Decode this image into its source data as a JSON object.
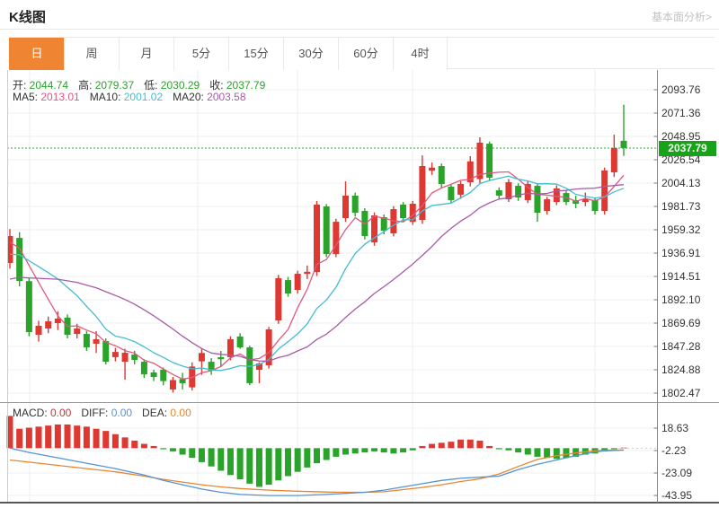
{
  "header": {
    "title": "K线图",
    "link": "基本面分析>"
  },
  "tabs": {
    "items": [
      {
        "key": "day",
        "label": "日",
        "active": true
      },
      {
        "key": "week",
        "label": "周",
        "active": false
      },
      {
        "key": "month",
        "label": "月",
        "active": false
      },
      {
        "key": "5min",
        "label": "5分",
        "active": false
      },
      {
        "key": "15min",
        "label": "15分",
        "active": false
      },
      {
        "key": "30min",
        "label": "30分",
        "active": false
      },
      {
        "key": "60min",
        "label": "60分",
        "active": false
      },
      {
        "key": "4hour",
        "label": "4时",
        "active": false
      }
    ]
  },
  "info_row": [
    {
      "key": "open",
      "label": "开:",
      "value": "2044.74",
      "color": "#2ba12b"
    },
    {
      "key": "high",
      "label": "高:",
      "value": "2079.37",
      "color": "#2ba12b"
    },
    {
      "key": "low",
      "label": "低:",
      "value": "2030.29",
      "color": "#2ba12b"
    },
    {
      "key": "close",
      "label": "收:",
      "value": "2037.79",
      "color": "#2ba12b"
    }
  ],
  "ma_row": [
    {
      "key": "ma5",
      "label": "MA5:",
      "value": "2013.01",
      "color": "#e0587e"
    },
    {
      "key": "ma10",
      "label": "MA10:",
      "value": "2001.02",
      "color": "#44bcd2"
    },
    {
      "key": "ma20",
      "label": "MA20:",
      "value": "2003.58",
      "color": "#a75ba7"
    }
  ],
  "macd_row": [
    {
      "key": "macd",
      "label": "MACD:",
      "value": "0.00",
      "color": "#cc3232"
    },
    {
      "key": "diff",
      "label": "DIFF:",
      "value": "0.00",
      "color": "#5593d6"
    },
    {
      "key": "dea",
      "label": "DEA:",
      "value": "0.00",
      "color": "#e8852e"
    }
  ],
  "price_tag": "2037.79",
  "colors": {
    "up": "#dd3832",
    "down": "#2aa32b",
    "tag_bg": "#17a317",
    "dotted_line": "#2fa52f",
    "ma5": "#e0587e",
    "ma10": "#44bcd2",
    "ma20": "#a75ba7",
    "diff": "#5593d6",
    "dea": "#e8852e",
    "grid": "#efefef",
    "axis": "#888888",
    "label": "#333333",
    "active_tab": "#ef8532"
  },
  "chart_data": {
    "type": "candlestick+macd",
    "main": {
      "y_axis_labels": [
        "2093.76",
        "2071.36",
        "2048.95",
        "2026.54",
        "2004.13",
        "1981.73",
        "1959.32",
        "1936.91",
        "1914.51",
        "1892.10",
        "1869.69",
        "1847.28",
        "1824.88",
        "1802.47"
      ],
      "ylim": [
        1802.47,
        2093.76
      ],
      "current_price": 2037.79,
      "ma_windows": [
        5,
        10,
        20
      ],
      "ma_seed": [
        1880,
        1876,
        1872,
        1875,
        1879,
        1884,
        1889,
        1894,
        1899,
        1904,
        1909,
        1914,
        1919,
        1924,
        1929,
        1934,
        1939,
        1944,
        1949,
        1952
      ],
      "candles": [
        [
          1927.4,
          1960.0,
          1922.0,
          1953.3
        ],
        [
          1951.5,
          1957.0,
          1905.0,
          1910.2
        ],
        [
          1910.0,
          1913.0,
          1857.0,
          1861.0
        ],
        [
          1858.5,
          1872.0,
          1852.0,
          1867.1
        ],
        [
          1864.5,
          1876.0,
          1860.0,
          1871.4
        ],
        [
          1869.7,
          1881.0,
          1863.0,
          1874.0
        ],
        [
          1875.0,
          1878.0,
          1855.0,
          1858.5
        ],
        [
          1859.3,
          1869.0,
          1855.0,
          1864.5
        ],
        [
          1859.3,
          1862.0,
          1843.0,
          1846.4
        ],
        [
          1849.9,
          1862.0,
          1841.0,
          1854.2
        ],
        [
          1852.4,
          1855.0,
          1830.0,
          1832.6
        ],
        [
          1837.0,
          1846.0,
          1833.0,
          1842.0
        ],
        [
          1832.6,
          1845.0,
          1815.4,
          1841.2
        ],
        [
          1839.5,
          1843.0,
          1830.0,
          1834.3
        ],
        [
          1832.6,
          1835.0,
          1817.0,
          1820.5
        ],
        [
          1822.3,
          1825.0,
          1814.0,
          1818.0
        ],
        [
          1825.0,
          1827.0,
          1810.0,
          1814.0
        ],
        [
          1806.0,
          1818.0,
          1803.0,
          1815.0
        ],
        [
          1816.0,
          1822.0,
          1806.0,
          1812.0
        ],
        [
          1808.0,
          1832.0,
          1805.0,
          1828.0
        ],
        [
          1833.0,
          1845.0,
          1820.0,
          1841.0
        ],
        [
          1832.6,
          1836.0,
          1820.0,
          1824.0
        ],
        [
          1837.0,
          1843.0,
          1828.0,
          1835.0
        ],
        [
          1837.0,
          1857.0,
          1834.0,
          1854.2
        ],
        [
          1856.8,
          1860.0,
          1845.0,
          1846.4
        ],
        [
          1846.4,
          1848.0,
          1810.0,
          1812.0
        ],
        [
          1824.9,
          1832.0,
          1812.0,
          1830.9
        ],
        [
          1829.2,
          1866.0,
          1826.0,
          1863.7
        ],
        [
          1872.3,
          1916.0,
          1869.0,
          1912.8
        ],
        [
          1911.0,
          1914.0,
          1895.0,
          1898.1
        ],
        [
          1901.6,
          1920.0,
          1898.0,
          1917.1
        ],
        [
          1917.0,
          1925.0,
          1912.0,
          1919.0
        ],
        [
          1918.8,
          1987.0,
          1915.0,
          1983.5
        ],
        [
          1981.7,
          1984.0,
          1933.0,
          1936.0
        ],
        [
          1936.0,
          1970.0,
          1933.0,
          1967.0
        ],
        [
          1970.5,
          2005.8,
          1967.0,
          1992.1
        ],
        [
          1992.1,
          1995.0,
          1972.0,
          1975.7
        ],
        [
          1977.4,
          1980.0,
          1950.0,
          1953.3
        ],
        [
          1947.2,
          1976.0,
          1944.0,
          1973.1
        ],
        [
          1971.4,
          1974.0,
          1955.0,
          1958.4
        ],
        [
          1955.9,
          1982.0,
          1953.0,
          1979.1
        ],
        [
          1983.5,
          1986.0,
          1967.0,
          1970.5
        ],
        [
          1966.9,
          1987.0,
          1964.0,
          1984.3
        ],
        [
          1968.8,
          2030.8,
          1965.0,
          2020.5
        ],
        [
          2016.0,
          2024.0,
          2012.0,
          2019.0
        ],
        [
          2020.5,
          2023.0,
          2000.0,
          2003.3
        ],
        [
          2000.7,
          2003.0,
          1985.0,
          1987.8
        ],
        [
          1993.0,
          2006.0,
          1989.0,
          2003.3
        ],
        [
          2005.0,
          2030.0,
          2001.0,
          2025.0
        ],
        [
          2008.0,
          2048.1,
          2004.0,
          2043.0
        ],
        [
          2042.0,
          2044.0,
          2006.0,
          2009.3
        ],
        [
          1997.2,
          2000.0,
          1989.0,
          1992.1
        ],
        [
          1988.6,
          2008.0,
          1986.0,
          2005.0
        ],
        [
          2001.5,
          2004.0,
          1987.0,
          1990.3
        ],
        [
          1987.8,
          2006.0,
          1985.0,
          2003.3
        ],
        [
          2001.5,
          2004.0,
          1967.0,
          1975.7
        ],
        [
          1977.4,
          1991.0,
          1974.0,
          1988.6
        ],
        [
          1986.0,
          2002.0,
          1983.0,
          1999.0
        ],
        [
          1994.6,
          1997.0,
          1983.0,
          1986.0
        ],
        [
          1987.8,
          1992.0,
          1980.0,
          1984.3
        ],
        [
          1986.0,
          1995.0,
          1982.0,
          1989.0
        ],
        [
          1987.8,
          1990.0,
          1974.0,
          1977.4
        ],
        [
          1977.4,
          2019.0,
          1974.0,
          2016.2
        ],
        [
          2014.5,
          2050.7,
          2010.0,
          2037.7
        ],
        [
          2044.74,
          2079.37,
          2030.29,
          2037.79
        ]
      ]
    },
    "macd": {
      "y_axis_labels": [
        "18.63",
        "-2.23",
        "-23.09",
        "-43.95"
      ],
      "ylim": [
        -43.95,
        18.63
      ],
      "bars": [
        30,
        18,
        19,
        20,
        21,
        22,
        22,
        21,
        20,
        18,
        16,
        13,
        10,
        7,
        4,
        2,
        -1,
        -3,
        -6,
        -9,
        -13,
        -17,
        -21,
        -25,
        -29,
        -33,
        -36,
        -34,
        -30,
        -26,
        -22,
        -18,
        -14,
        -11,
        -8,
        -6,
        -5,
        -4,
        -3,
        -4,
        -5,
        -4,
        -2,
        2,
        4,
        5,
        6,
        8,
        8,
        7,
        2,
        -1,
        -2,
        -4,
        -6,
        -8,
        -9,
        -10,
        -9,
        -8,
        -6,
        -5,
        -3,
        -1,
        0.5
      ],
      "diff_points": [
        [
          1,
          0
        ],
        [
          3,
          -4
        ],
        [
          6,
          -9
        ],
        [
          9,
          -14
        ],
        [
          12,
          -19
        ],
        [
          15,
          -25
        ],
        [
          17,
          -30
        ],
        [
          19,
          -34
        ],
        [
          21,
          -38
        ],
        [
          23,
          -41
        ],
        [
          25,
          -43
        ],
        [
          28,
          -44
        ],
        [
          31,
          -44
        ],
        [
          34,
          -43
        ],
        [
          36,
          -42
        ],
        [
          38,
          -41
        ],
        [
          40,
          -39
        ],
        [
          42,
          -36
        ],
        [
          44,
          -33
        ],
        [
          46,
          -30
        ],
        [
          48,
          -28
        ],
        [
          50,
          -27
        ],
        [
          52,
          -26
        ],
        [
          54,
          -20
        ],
        [
          56,
          -15
        ],
        [
          58,
          -11
        ],
        [
          60,
          -7
        ],
        [
          62,
          -3.5
        ],
        [
          63,
          -2.5
        ],
        [
          65,
          -1.8
        ]
      ],
      "dea_points": [
        [
          1,
          -11
        ],
        [
          3,
          -13
        ],
        [
          6,
          -16
        ],
        [
          9,
          -19
        ],
        [
          12,
          -22
        ],
        [
          15,
          -26
        ],
        [
          17,
          -29
        ],
        [
          19,
          -31.5
        ],
        [
          21,
          -34
        ],
        [
          23,
          -36
        ],
        [
          25,
          -37.5
        ],
        [
          28,
          -39
        ],
        [
          31,
          -40
        ],
        [
          34,
          -40.8
        ],
        [
          36,
          -41
        ],
        [
          38,
          -41
        ],
        [
          40,
          -40.5
        ],
        [
          42,
          -38.5
        ],
        [
          44,
          -36.5
        ],
        [
          46,
          -34
        ],
        [
          48,
          -31
        ],
        [
          50,
          -28.5
        ],
        [
          52,
          -24
        ],
        [
          54,
          -17
        ],
        [
          56,
          -10.5
        ],
        [
          58,
          -7
        ],
        [
          60,
          -4.5
        ],
        [
          62,
          -2.5
        ],
        [
          63,
          -2
        ],
        [
          65,
          -1.7
        ]
      ]
    }
  }
}
